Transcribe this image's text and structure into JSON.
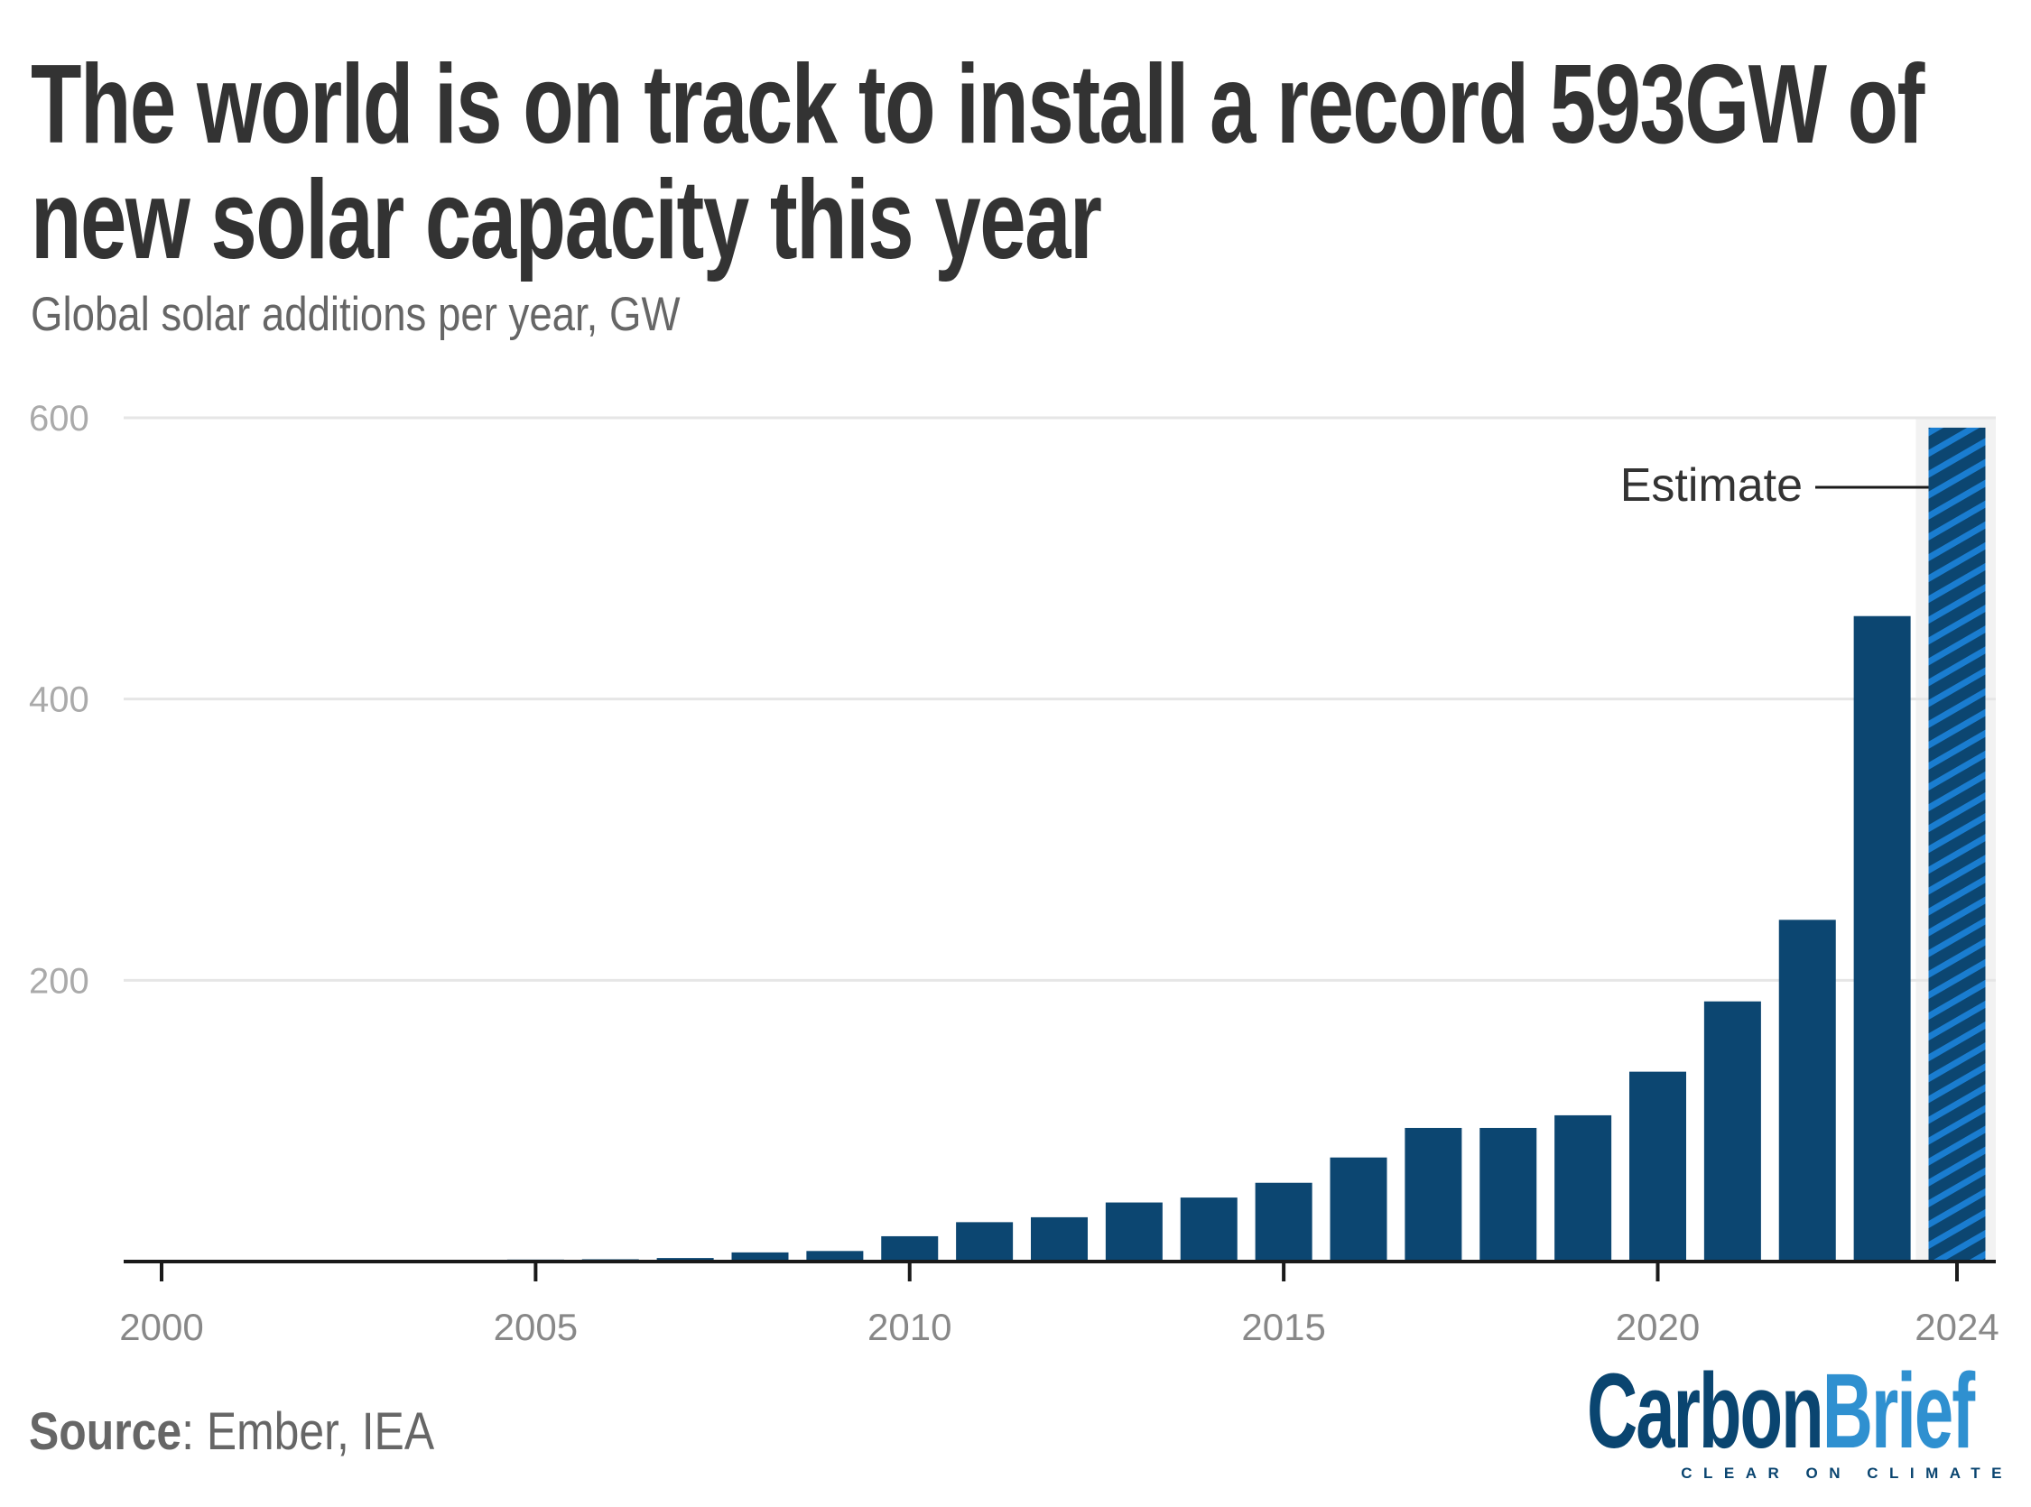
{
  "title": "The world is on track to install a record 593GW of new solar capacity this year",
  "title_line1": "The world is on track to install a record 593GW of",
  "title_line2": "new solar capacity this year",
  "subtitle": "Global solar additions per year, GW",
  "source": {
    "label": "Source",
    "text": ": Ember, IEA"
  },
  "logo": {
    "word1": "Carbon",
    "word2": "Brief",
    "tagline": "CLEAR ON CLIMATE",
    "colors": {
      "dark": "#0a4570",
      "light": "#2f90d0"
    }
  },
  "chart_data": {
    "type": "bar",
    "title": "The world is on track to install a record 593GW of new solar capacity this year",
    "subtitle": "Global solar additions per year, GW",
    "xlabel": "",
    "ylabel": "",
    "categories": [
      2000,
      2001,
      2002,
      2003,
      2004,
      2005,
      2006,
      2007,
      2008,
      2009,
      2010,
      2011,
      2012,
      2013,
      2014,
      2015,
      2016,
      2017,
      2018,
      2019,
      2020,
      2021,
      2022,
      2023,
      2024
    ],
    "values": [
      0.3,
      0.3,
      0.4,
      0.6,
      1,
      1.4,
      1.6,
      2.5,
      6.5,
      7.5,
      18,
      28,
      31.5,
      42,
      45.5,
      56,
      74,
      95,
      95,
      104,
      135,
      185,
      243,
      459,
      593
    ],
    "estimate_categories": [
      2024
    ],
    "annotation": "Estimate",
    "ylim": [
      0,
      600
    ],
    "yticks": [
      200,
      400,
      600
    ],
    "xticks": [
      2000,
      2005,
      2010,
      2015,
      2020,
      2024
    ],
    "grid": true,
    "colors": {
      "bar": "#0c4671",
      "estimate_hatch": "#1a7dd0",
      "estimate_band": "#f2f2f2",
      "grid": "#e6e6e6"
    }
  }
}
